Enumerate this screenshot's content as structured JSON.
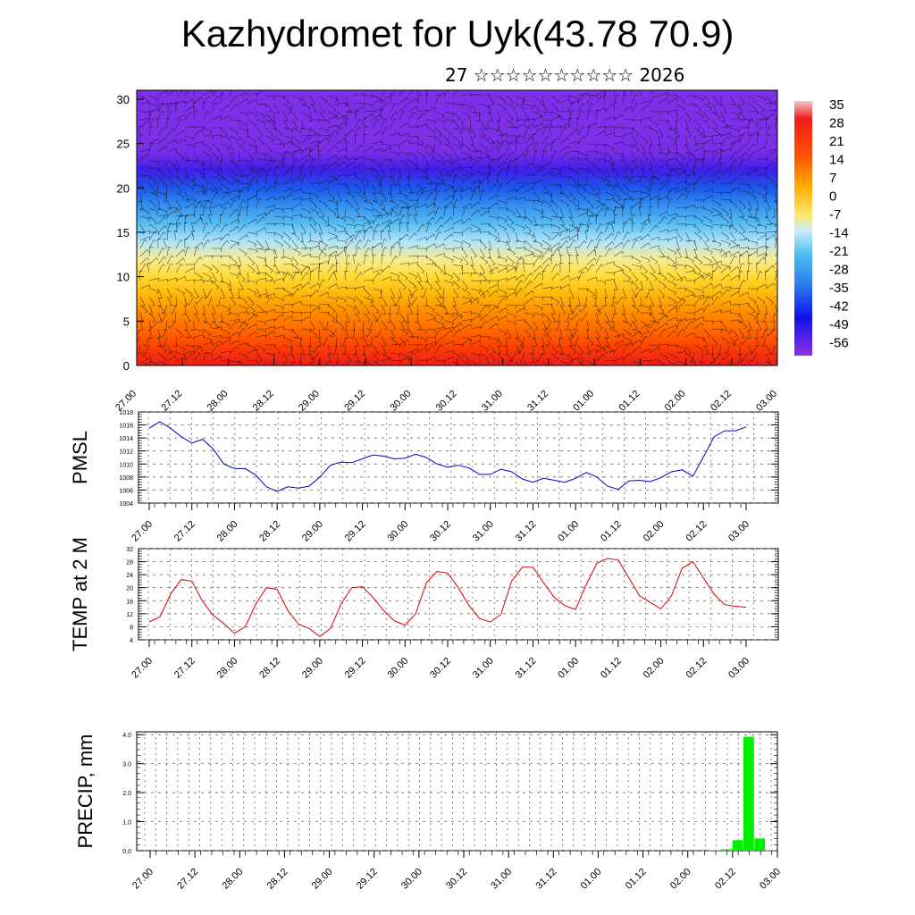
{
  "title": "Kazhydromet for Uyk(43.78 70.9)",
  "subtitle": "27 ☆☆☆☆☆☆☆☆☆☆ 2026",
  "colors": {
    "pmsl_line": "#0000cc",
    "temp_line": "#dd0000",
    "precip_bar": "#00ee00"
  },
  "chart_data": [
    {
      "type": "heatmap",
      "title": "",
      "xlabel": "",
      "ylabel": "",
      "x_ticks": [
        "27.00",
        "27.12",
        "28.00",
        "28.12",
        "29.00",
        "29.12",
        "30.00",
        "30.12",
        "31.00",
        "31.12",
        "01.00",
        "01.12",
        "02.00",
        "02.12",
        "03.00"
      ],
      "y_ticks": [
        "0",
        "5",
        "10",
        "15",
        "20",
        "25",
        "30"
      ],
      "ylim": [
        0,
        31
      ],
      "colorbar": {
        "labels": [
          "35",
          "28",
          "21",
          "14",
          "7",
          "0",
          "-7",
          "-14",
          "-21",
          "-28",
          "-35",
          "-42",
          "-49",
          "-56"
        ]
      },
      "levels": [
        0,
        2,
        4,
        6,
        8,
        10,
        12,
        14,
        16,
        18,
        20,
        22,
        24,
        26,
        28,
        30
      ],
      "level_temps": [
        28,
        22,
        16,
        11,
        5,
        -1,
        -8,
        -16,
        -25,
        -33,
        -41,
        -52,
        -56,
        -57,
        -57,
        -57
      ],
      "overlay": "wind barbs"
    },
    {
      "type": "line",
      "title": "",
      "ylabel": "PMSL",
      "x_ticks": [
        "27.00",
        "27.12",
        "28.00",
        "28.12",
        "29.00",
        "29.12",
        "30.00",
        "30.12",
        "31.00",
        "31.12",
        "01.00",
        "01.12",
        "02.00",
        "02.12",
        "03.00"
      ],
      "y_ticks": [
        "1004",
        "1006",
        "1008",
        "1010",
        "1012",
        "1014",
        "1016",
        "1018"
      ],
      "ylim": [
        1004,
        1018
      ],
      "series": [
        {
          "values": [
            1015.5,
            1016.5,
            1015.5,
            1014.2,
            1013.2,
            1013.8,
            1012.3,
            1010,
            1009.3,
            1009.3,
            1008.3,
            1006.5,
            1005.8,
            1006.5,
            1006.3,
            1006.6,
            1008,
            1009.8,
            1010.3,
            1010.2,
            1010.8,
            1011.4,
            1011.2,
            1010.8,
            1010.9,
            1011.5,
            1011,
            1010,
            1009.5,
            1009.8,
            1009.4,
            1008.4,
            1008.4,
            1009.2,
            1008.8,
            1007.7,
            1007.2,
            1007.8,
            1007.5,
            1007.2,
            1007.8,
            1008.7,
            1008,
            1006.6,
            1006.1,
            1007.4,
            1007.5,
            1007.3,
            1007.9,
            1008.8,
            1009.1,
            1008.1,
            1011.1,
            1014.2,
            1015.1,
            1015.1,
            1015.7
          ]
        }
      ]
    },
    {
      "type": "line",
      "title": "",
      "ylabel": "TEMP at 2 M",
      "x_ticks": [
        "27.00",
        "27.12",
        "28.00",
        "28.12",
        "29.00",
        "29.12",
        "30.00",
        "30.12",
        "31.00",
        "31.12",
        "01.00",
        "01.12",
        "02.00",
        "02.12",
        "03.00"
      ],
      "y_ticks": [
        "4",
        "8",
        "12",
        "16",
        "20",
        "24",
        "28",
        "32"
      ],
      "ylim": [
        4,
        32
      ],
      "series": [
        {
          "values": [
            9.5,
            11,
            18,
            22.5,
            22,
            15.8,
            11.5,
            9,
            6,
            8,
            15,
            20,
            19.5,
            13,
            8.8,
            7.5,
            5,
            7.5,
            15,
            20,
            20.3,
            17,
            13,
            9.8,
            8.5,
            12,
            21.5,
            25,
            24.5,
            20,
            14.5,
            10.5,
            9.5,
            11.8,
            22,
            26.3,
            26.3,
            21.5,
            17,
            14.5,
            13.3,
            21,
            27.5,
            29,
            28.5,
            23,
            17.5,
            15.5,
            13.5,
            17.5,
            26,
            28,
            23,
            18,
            14.8,
            14.3,
            14
          ]
        }
      ]
    },
    {
      "type": "bar",
      "title": "",
      "ylabel": "PRECIP, mm",
      "x_ticks": [
        "27.00",
        "27.12",
        "28.00",
        "28.12",
        "29.00",
        "29.12",
        "30.00",
        "30.12",
        "31.00",
        "31.12",
        "01.00",
        "01.12",
        "02.00",
        "02.12",
        "03.00"
      ],
      "y_ticks": [
        "0.0",
        "1.0",
        "2.0",
        "3.0",
        "4.0"
      ],
      "ylim": [
        0,
        4.1
      ],
      "values": [
        0,
        0,
        0,
        0,
        0,
        0,
        0,
        0,
        0,
        0,
        0,
        0,
        0,
        0,
        0,
        0,
        0,
        0,
        0,
        0,
        0,
        0,
        0,
        0,
        0,
        0,
        0,
        0,
        0,
        0,
        0,
        0,
        0,
        0,
        0,
        0,
        0,
        0,
        0,
        0,
        0.01,
        0.02,
        0,
        0,
        0,
        0,
        0,
        0,
        0,
        0,
        0,
        0,
        0.02,
        0.05,
        0.36,
        3.93,
        0.42,
        0.02
      ]
    }
  ]
}
